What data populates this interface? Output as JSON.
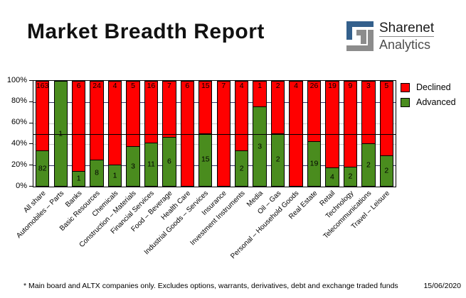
{
  "header": {
    "title": "Market Breadth Report",
    "logo": {
      "name": "Sharenet",
      "sub": "Analytics",
      "blue": "#34608c",
      "gray": "#8c8c8c"
    }
  },
  "chart_data": {
    "type": "bar",
    "stacked": true,
    "orientation": "vertical",
    "unit": "percent of companies per sector",
    "categories": [
      "All share",
      "Automobiles – Parts",
      "Banks",
      "Basic Resources",
      "Chemicals",
      "Construction – Materials",
      "Financial Services",
      "Food – Beverage",
      "Health Care",
      "Industrial Goods – Services",
      "Insurance",
      "Investment Instruments",
      "Media",
      "Oil – Gas",
      "Personal – Household Goods",
      "Real Estate",
      "Retail",
      "Technology",
      "Telecommunications",
      "Travel – Leisure"
    ],
    "series": [
      {
        "name": "Declined",
        "color": "#ff0000",
        "values": [
          163,
          0,
          6,
          24,
          4,
          5,
          16,
          7,
          6,
          15,
          7,
          4,
          1,
          2,
          4,
          26,
          19,
          9,
          3,
          5
        ]
      },
      {
        "name": "Advanced",
        "color": "#4a8c1e",
        "values": [
          82,
          1,
          1,
          8,
          1,
          3,
          11,
          6,
          0,
          15,
          0,
          2,
          3,
          2,
          0,
          19,
          4,
          2,
          2,
          2
        ]
      }
    ],
    "y_axis": {
      "tick_labels": [
        "100%",
        "80%",
        "60%",
        "40%",
        "20%",
        "0%"
      ],
      "min": 0,
      "max": 100
    },
    "reference_line_pct": 50,
    "gridlines": [
      {
        "pct": 80,
        "color": "#333366"
      },
      {
        "pct": 60,
        "color": "#c8c8c8"
      },
      {
        "pct": 40,
        "color": "#c8c8c8"
      },
      {
        "pct": 20,
        "color": "#333366"
      }
    ],
    "legend_position": "top-right",
    "grid": true
  },
  "footer": {
    "note": "* Main board and ALTX companies only. Excludes options, warrants, derivatives, debt and exchange traded funds",
    "date": "15/06/2020"
  }
}
